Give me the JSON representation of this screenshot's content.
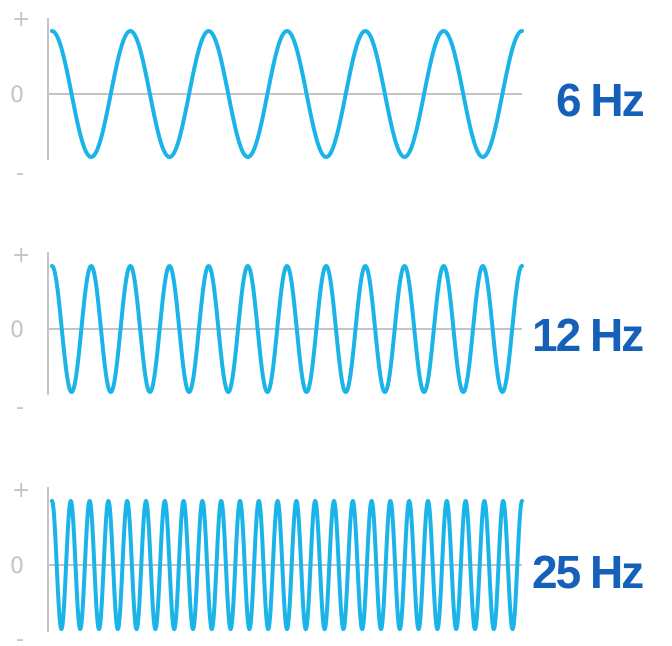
{
  "chart_data": [
    {
      "type": "line",
      "function": "sine",
      "cycles": 6,
      "frequency_label": "6 Hz",
      "y_tick_labels": {
        "top": "+",
        "middle": "0",
        "bottom": "-"
      }
    },
    {
      "type": "line",
      "function": "sine",
      "cycles": 12,
      "frequency_label": "12 Hz",
      "y_tick_labels": {
        "top": "+",
        "middle": "0",
        "bottom": "-"
      }
    },
    {
      "type": "line",
      "function": "sine",
      "cycles": 25,
      "frequency_label": "25 Hz",
      "y_tick_labels": {
        "top": "+",
        "middle": "0",
        "bottom": "-"
      }
    }
  ],
  "colors": {
    "wave": "#1ab4e8",
    "label": "#1560b8",
    "axis": "#c4c4c4"
  }
}
